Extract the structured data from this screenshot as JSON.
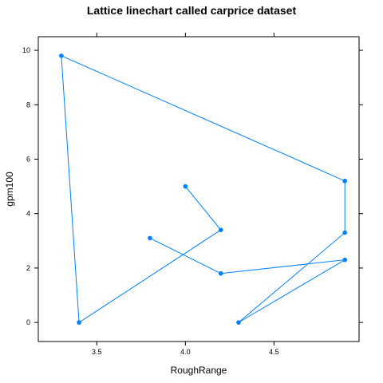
{
  "chart_data": {
    "type": "line",
    "title": "Lattice linechart called carprice dataset",
    "xlabel": "RoughRange",
    "ylabel": "gpm100",
    "xlim": [
      3.17,
      4.98
    ],
    "ylim": [
      -0.7,
      10.5
    ],
    "x_ticks": [
      {
        "value": 3.5,
        "label": "3.5"
      },
      {
        "value": 4.0,
        "label": "4.0"
      },
      {
        "value": 4.5,
        "label": "4.5"
      }
    ],
    "y_ticks": [
      {
        "value": 0,
        "label": "0"
      },
      {
        "value": 2,
        "label": "2"
      },
      {
        "value": 4,
        "label": "4"
      },
      {
        "value": 6,
        "label": "6"
      },
      {
        "value": 8,
        "label": "8"
      },
      {
        "value": 10,
        "label": "10"
      }
    ],
    "grid": false,
    "color": "#0080ff",
    "series": [
      {
        "points": [
          {
            "x": 4.0,
            "y": 5.0
          },
          {
            "x": 4.2,
            "y": 3.4
          },
          {
            "x": 3.4,
            "y": 0.0
          },
          {
            "x": 3.3,
            "y": 9.8
          },
          {
            "x": 4.9,
            "y": 5.2
          },
          {
            "x": 4.9,
            "y": 3.3
          },
          {
            "x": 4.3,
            "y": 0.0
          },
          {
            "x": 4.9,
            "y": 2.3
          },
          {
            "x": 4.2,
            "y": 1.8
          },
          {
            "x": 3.8,
            "y": 3.1
          }
        ]
      }
    ]
  }
}
